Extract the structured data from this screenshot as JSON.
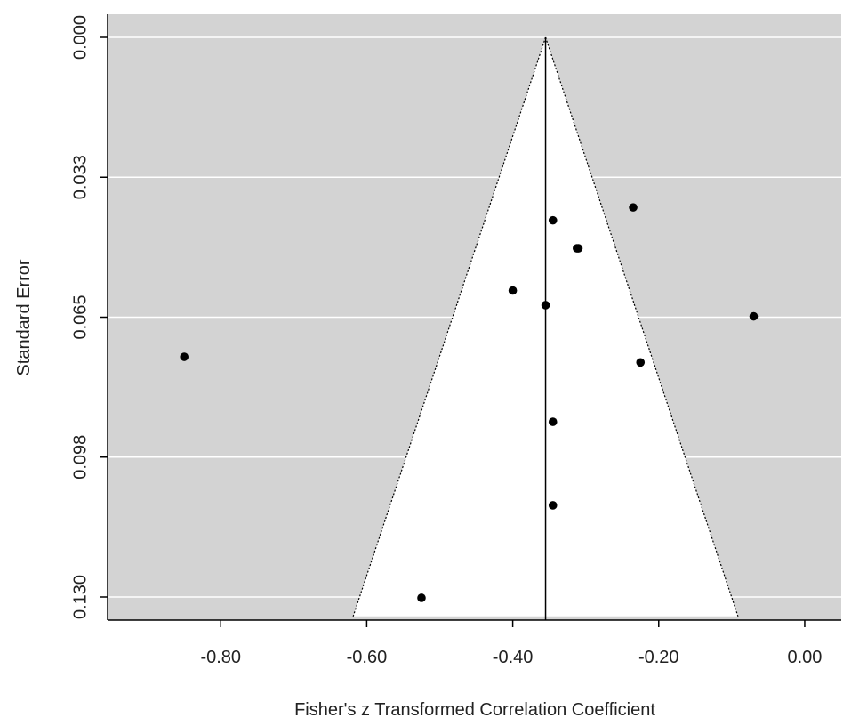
{
  "chart_data": {
    "type": "scatter",
    "subtype": "funnel",
    "title": "",
    "xlabel": "Fisher's z Transformed Correlation Coefficient",
    "ylabel": "Standard Error",
    "xlim": [
      -0.955,
      0.05
    ],
    "ylim": [
      0.0,
      0.1345
    ],
    "y_reversed": true,
    "x_ticks": [
      -0.8,
      -0.6,
      -0.4,
      -0.2,
      0.0
    ],
    "x_tick_labels": [
      "-0.80",
      "-0.60",
      "-0.40",
      "-0.20",
      "0.00"
    ],
    "y_ticks": [
      0.0,
      0.0325,
      0.065,
      0.0975,
      0.13
    ],
    "y_tick_labels": [
      "0.000",
      "0.033",
      "0.065",
      "0.098",
      "0.130"
    ],
    "grid": true,
    "summary_estimate": -0.355,
    "funnel_z": 1.96,
    "points": [
      {
        "x": -0.235,
        "y": 0.0395
      },
      {
        "x": -0.345,
        "y": 0.0425
      },
      {
        "x": -0.31,
        "y": 0.049
      },
      {
        "x": -0.312,
        "y": 0.049
      },
      {
        "x": -0.4,
        "y": 0.0588
      },
      {
        "x": -0.355,
        "y": 0.0622
      },
      {
        "x": -0.07,
        "y": 0.0648
      },
      {
        "x": -0.85,
        "y": 0.0742
      },
      {
        "x": -0.225,
        "y": 0.0755
      },
      {
        "x": -0.345,
        "y": 0.0893
      },
      {
        "x": -0.345,
        "y": 0.1087
      },
      {
        "x": -0.525,
        "y": 0.1302
      }
    ]
  },
  "colors": {
    "panel_background": "#d3d3d3",
    "funnel_fill": "#ffffff",
    "gridline": "#ffffff",
    "point": "#000000",
    "axis": "#000000"
  }
}
